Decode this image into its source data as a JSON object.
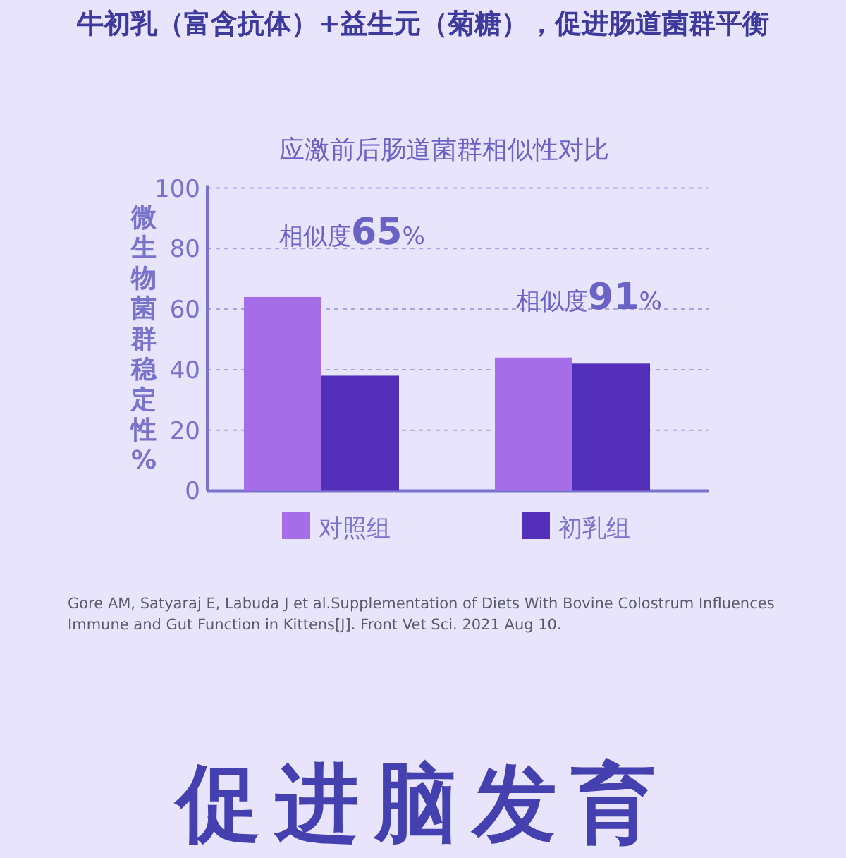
{
  "chart_data": {
    "type": "bar",
    "subtitle": "牛初乳（富含抗体）+益生元（菊糖），促进肠道菌群平衡",
    "title": "应激前后肠道菌群相似性对比",
    "ylabel": "微生物菌群稳定性%",
    "categories": [
      null,
      null
    ],
    "series": [
      {
        "name": "对照组",
        "color": "#a66de8",
        "values": [
          64,
          44
        ]
      },
      {
        "name": "初乳组",
        "color": "#532eb8",
        "values": [
          38,
          42
        ]
      }
    ],
    "ylim": [
      0,
      100
    ],
    "yticks": [
      0,
      20,
      40,
      60,
      80,
      100
    ],
    "grid": "y",
    "legend": "bottom",
    "annotations": [
      "相似度**65**%",
      "相似度**91**%",
      "Gore AM, Satyaraj E, Labuda J et al.Supplementation of Diets With Bovine Colostrum Influences Immune and Gut Function in Kittens[J]. Front Vet Sci. 2021 Aug 10.",
      "促进脑发育"
    ]
  }
}
